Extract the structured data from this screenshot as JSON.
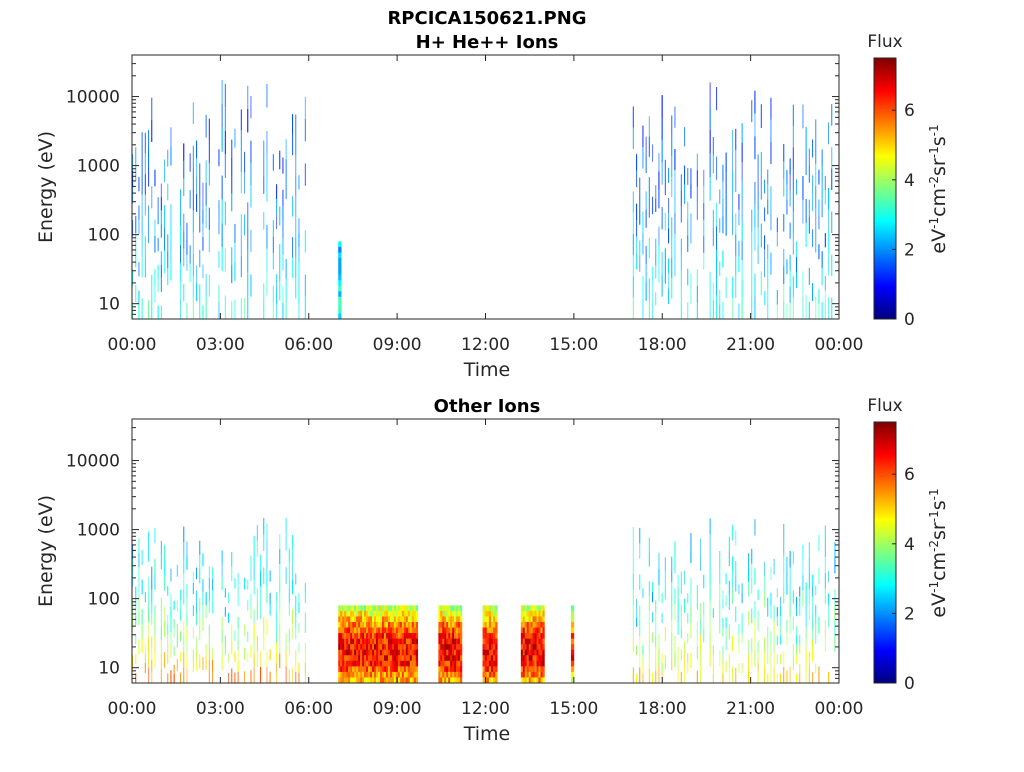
{
  "figure": {
    "title_line1": "RPCICA150621.PNG"
  },
  "colors": {
    "cmap": [
      "#00007f",
      "#0000ff",
      "#007fff",
      "#00ffff",
      "#7fff7f",
      "#ffff00",
      "#ff7f00",
      "#ff0000",
      "#7f0000"
    ]
  },
  "chart_data": [
    {
      "type": "heatmap",
      "title": "H+ He++ Ions",
      "xlabel": "Time",
      "ylabel": "Energy (eV)",
      "x_tick_labels": [
        "00:00",
        "03:00",
        "06:00",
        "09:00",
        "12:00",
        "15:00",
        "18:00",
        "21:00",
        "00:00"
      ],
      "y_tick_labels": [
        "10",
        "100",
        "1000",
        "10000"
      ],
      "y_scale": "log",
      "xlim_hours": [
        0,
        24
      ],
      "ylim": [
        6,
        40000
      ],
      "colorbar": {
        "title": "Flux",
        "label": "eV-1cm-2sr-1s-1",
        "label_parts": [
          "eV",
          "-1",
          "cm",
          "-2",
          "sr",
          "-1",
          "s",
          "-1"
        ],
        "ticks": [
          "0",
          "2",
          "4",
          "6"
        ],
        "range": [
          0,
          7.5
        ]
      },
      "blocks": [
        {
          "start": 0.0,
          "end": 5.9,
          "emin": 6,
          "emax": 18000,
          "spiky": true,
          "low_flux": 3.0,
          "high_flux": 1.6
        },
        {
          "start": 7.0,
          "end": 7.1,
          "emin": 6,
          "emax": 80,
          "spiky": false,
          "low_flux": 2.6,
          "high_flux": 2.6
        },
        {
          "start": 17.0,
          "end": 23.9,
          "emin": 6,
          "emax": 18000,
          "spiky": true,
          "low_flux": 3.0,
          "high_flux": 1.6
        }
      ]
    },
    {
      "type": "heatmap",
      "title": "Other Ions",
      "xlabel": "Time",
      "ylabel": "Energy (eV)",
      "x_tick_labels": [
        "00:00",
        "03:00",
        "06:00",
        "09:00",
        "12:00",
        "15:00",
        "18:00",
        "21:00",
        "00:00"
      ],
      "y_tick_labels": [
        "10",
        "100",
        "1000",
        "10000"
      ],
      "y_scale": "log",
      "xlim_hours": [
        0,
        24
      ],
      "ylim": [
        6,
        40000
      ],
      "colorbar": {
        "title": "Flux",
        "label": "eV-1cm-2sr-1s-1",
        "label_parts": [
          "eV",
          "-1",
          "cm",
          "-2",
          "sr",
          "-1",
          "s",
          "-1"
        ],
        "ticks": [
          "0",
          "2",
          "4",
          "6"
        ],
        "range": [
          0,
          7.5
        ]
      },
      "blocks": [
        {
          "start": 0.0,
          "end": 5.9,
          "emin": 6,
          "emax": 1500,
          "spiky": true,
          "low_flux": 5.5,
          "high_flux": 2.5
        },
        {
          "start": 7.0,
          "end": 9.7,
          "emin": 6,
          "emax": 80,
          "spiky": false,
          "low_flux": 6.5,
          "high_flux": 4.2
        },
        {
          "start": 10.4,
          "end": 11.2,
          "emin": 6,
          "emax": 80,
          "spiky": false,
          "low_flux": 6.6,
          "high_flux": 4.2
        },
        {
          "start": 11.9,
          "end": 12.4,
          "emin": 6,
          "emax": 80,
          "spiky": false,
          "low_flux": 6.6,
          "high_flux": 4.2
        },
        {
          "start": 13.2,
          "end": 14.0,
          "emin": 6,
          "emax": 80,
          "spiky": false,
          "low_flux": 6.6,
          "high_flux": 4.2
        },
        {
          "start": 14.9,
          "end": 15.0,
          "emin": 6,
          "emax": 80,
          "spiky": false,
          "low_flux": 6.4,
          "high_flux": 3.5
        },
        {
          "start": 17.0,
          "end": 23.9,
          "emin": 6,
          "emax": 1500,
          "spiky": true,
          "low_flux": 5.0,
          "high_flux": 2.5
        }
      ]
    }
  ]
}
